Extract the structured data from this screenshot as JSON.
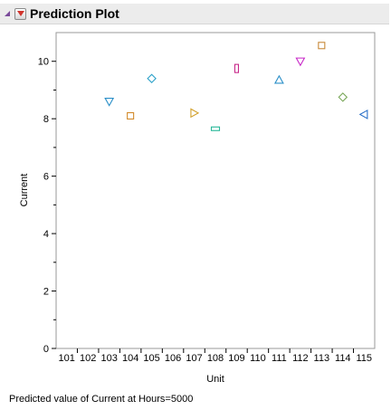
{
  "report": {
    "title": "Prediction Plot",
    "footer": "Predicted value of Current at Hours=5000"
  },
  "icons": {
    "disclosure": "disclosure-triangle-icon",
    "menu": "red-triangle-menu-icon",
    "menu_color": "#d0342c"
  },
  "chart_data": {
    "type": "scatter",
    "xlabel": "Unit",
    "ylabel": "Current",
    "categories": [
      "101",
      "102",
      "103",
      "104",
      "105",
      "106",
      "107",
      "108",
      "109",
      "110",
      "111",
      "112",
      "113",
      "114",
      "115"
    ],
    "ylim": [
      0,
      11
    ],
    "yticks": [
      0,
      2,
      4,
      6,
      8,
      10
    ],
    "grid": false,
    "points": [
      {
        "x": "103",
        "y": 8.6,
        "marker": "triangle-down",
        "color": "#2a8fc8"
      },
      {
        "x": "104",
        "y": 8.1,
        "marker": "square",
        "color": "#d28a2a"
      },
      {
        "x": "105",
        "y": 9.4,
        "marker": "diamond",
        "color": "#2aa0c8"
      },
      {
        "x": "107",
        "y": 8.2,
        "marker": "triangle-right",
        "color": "#d2a02a"
      },
      {
        "x": "108",
        "y": 7.65,
        "marker": "rect-wide",
        "color": "#2ab89a"
      },
      {
        "x": "109",
        "y": 9.75,
        "marker": "rect-tall",
        "color": "#c8288a"
      },
      {
        "x": "111",
        "y": 9.35,
        "marker": "triangle-up",
        "color": "#2a8fc8"
      },
      {
        "x": "112",
        "y": 10.0,
        "marker": "triangle-down",
        "color": "#c828c8"
      },
      {
        "x": "113",
        "y": 10.55,
        "marker": "square",
        "color": "#c88a3a"
      },
      {
        "x": "114",
        "y": 8.75,
        "marker": "diamond",
        "color": "#7aa85a"
      },
      {
        "x": "115",
        "y": 8.15,
        "marker": "triangle-left",
        "color": "#2a70c8"
      }
    ]
  }
}
